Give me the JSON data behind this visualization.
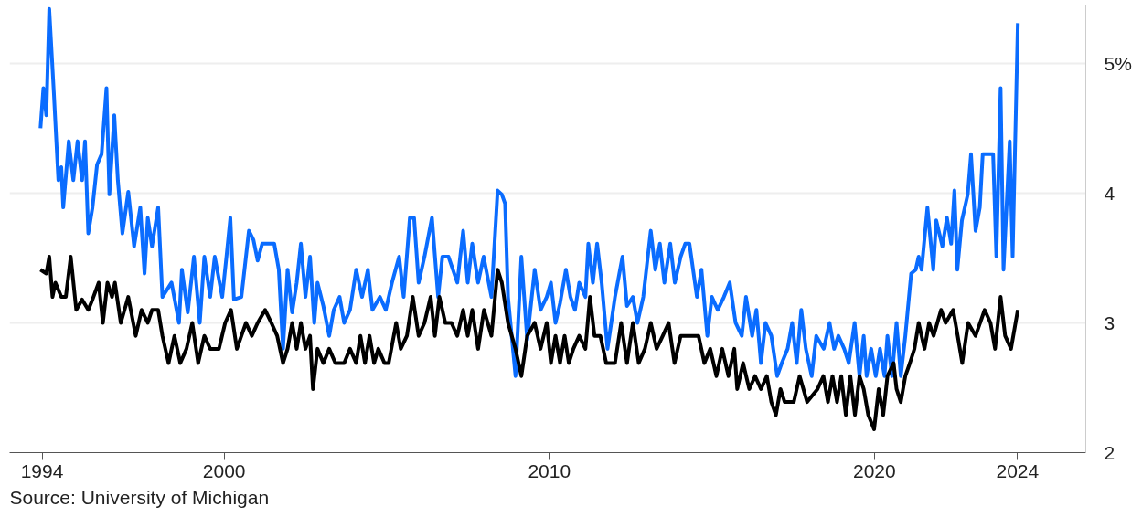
{
  "chart_data": {
    "type": "line",
    "annotations": [
      "Source: University of Michigan"
    ],
    "xlim": [
      1993.4,
      2026.5
    ],
    "xticks": [
      {
        "value": 1994.4,
        "label": "1994"
      },
      2000,
      2010,
      2020,
      {
        "value": 2024.4,
        "label": "2024"
      }
    ],
    "ylim": [
      2,
      5.45
    ],
    "yticks": [
      2,
      3,
      4,
      {
        "value": 5,
        "label": "5%"
      }
    ],
    "grid": "y",
    "marker": "none",
    "line_style": "solid",
    "series": [
      {
        "color": "#0a6cff",
        "x": [
          1994.35,
          1994.44,
          1994.53,
          1994.62,
          1994.76,
          1994.9,
          1994.99,
          1995.05,
          1995.22,
          1995.36,
          1995.49,
          1995.63,
          1995.72,
          1995.82,
          1995.95,
          1996.09,
          1996.23,
          1996.38,
          1996.47,
          1996.62,
          1996.73,
          1996.87,
          1997.05,
          1997.23,
          1997.42,
          1997.55,
          1997.65,
          1997.78,
          1997.97,
          1998.1,
          1998.38,
          1998.61,
          1998.7,
          1998.88,
          1999.07,
          1999.25,
          1999.39,
          1999.57,
          1999.71,
          1999.94,
          2000.07,
          2000.19,
          2000.3,
          2000.53,
          2000.76,
          2000.9,
          2001.03,
          2001.17,
          2001.54,
          2001.68,
          2001.81,
          2001.95,
          2002.09,
          2002.23,
          2002.36,
          2002.5,
          2002.64,
          2002.77,
          2002.87,
          2003.05,
          2003.23,
          2003.37,
          2003.55,
          2003.69,
          2003.87,
          2004.06,
          2004.24,
          2004.42,
          2004.56,
          2004.79,
          2004.97,
          2005.16,
          2005.38,
          2005.52,
          2005.71,
          2005.84,
          2005.98,
          2006.16,
          2006.39,
          2006.58,
          2006.71,
          2006.9,
          2007.17,
          2007.35,
          2007.49,
          2007.63,
          2007.81,
          2007.98,
          2008.22,
          2008.41,
          2008.54,
          2008.64,
          2008.73,
          2008.96,
          2009.14,
          2009.32,
          2009.55,
          2009.73,
          2009.92,
          2010.05,
          2010.19,
          2010.33,
          2010.51,
          2010.65,
          2010.79,
          2010.92,
          2011.11,
          2011.2,
          2011.34,
          2011.47,
          2011.61,
          2011.79,
          2012.02,
          2012.25,
          2012.39,
          2012.57,
          2012.71,
          2012.89,
          2013.12,
          2013.26,
          2013.4,
          2013.54,
          2013.72,
          2013.86,
          2014.04,
          2014.18,
          2014.31,
          2014.54,
          2014.68,
          2014.86,
          2015.0,
          2015.18,
          2015.37,
          2015.55,
          2015.73,
          2015.92,
          2016.05,
          2016.24,
          2016.37,
          2016.51,
          2016.65,
          2016.83,
          2017.01,
          2017.15,
          2017.33,
          2017.47,
          2017.61,
          2017.75,
          2017.89,
          2018.07,
          2018.21,
          2018.44,
          2018.62,
          2018.76,
          2018.89,
          2019.07,
          2019.21,
          2019.39,
          2019.54,
          2019.67,
          2019.76,
          2019.9,
          2020.04,
          2020.17,
          2020.31,
          2020.4,
          2020.54,
          2020.68,
          2020.81,
          2020.95,
          2021.13,
          2021.27,
          2021.36,
          2021.45,
          2021.63,
          2021.81,
          2021.9,
          2022.09,
          2022.23,
          2022.36,
          2022.46,
          2022.55,
          2022.69,
          2022.87,
          2022.97,
          2023.11,
          2023.24,
          2023.33,
          2023.65,
          2023.75,
          2023.88,
          2023.97,
          2024.16,
          2024.25,
          2024.41
        ],
        "values": [
          4.5,
          4.81,
          4.6,
          5.42,
          4.78,
          4.1,
          4.2,
          3.89,
          4.4,
          4.1,
          4.4,
          4.1,
          4.4,
          3.69,
          3.89,
          4.22,
          4.3,
          4.81,
          3.99,
          4.6,
          4.1,
          3.69,
          4.01,
          3.59,
          3.89,
          3.38,
          3.81,
          3.59,
          3.89,
          3.2,
          3.31,
          3.0,
          3.41,
          3.08,
          3.51,
          3.0,
          3.51,
          3.2,
          3.51,
          3.2,
          3.51,
          3.81,
          3.18,
          3.2,
          3.71,
          3.64,
          3.48,
          3.61,
          3.61,
          3.41,
          2.8,
          3.41,
          3.08,
          3.31,
          3.61,
          3.2,
          3.51,
          3.0,
          3.31,
          3.13,
          2.9,
          3.1,
          3.2,
          3.0,
          3.1,
          3.41,
          3.2,
          3.41,
          3.1,
          3.2,
          3.1,
          3.31,
          3.51,
          3.2,
          3.81,
          3.81,
          3.31,
          3.51,
          3.81,
          3.2,
          3.51,
          3.51,
          3.31,
          3.71,
          3.31,
          3.61,
          3.31,
          3.51,
          3.2,
          4.02,
          3.99,
          3.92,
          3.2,
          2.59,
          3.51,
          2.87,
          3.41,
          3.1,
          3.2,
          3.31,
          3.0,
          3.15,
          3.41,
          3.2,
          3.1,
          3.31,
          3.2,
          3.61,
          3.31,
          3.61,
          3.31,
          2.8,
          3.2,
          3.51,
          3.13,
          3.2,
          3.0,
          3.2,
          3.71,
          3.41,
          3.61,
          3.31,
          3.61,
          3.31,
          3.51,
          3.61,
          3.61,
          3.2,
          3.41,
          2.9,
          3.2,
          3.1,
          3.2,
          3.31,
          3.0,
          2.9,
          3.2,
          2.9,
          3.1,
          2.69,
          3.0,
          2.9,
          2.59,
          2.69,
          2.8,
          3.0,
          2.69,
          3.1,
          2.8,
          2.59,
          2.9,
          2.8,
          3.0,
          2.8,
          2.9,
          2.8,
          2.69,
          3.0,
          2.59,
          2.9,
          2.59,
          2.8,
          2.59,
          2.8,
          2.59,
          2.9,
          2.59,
          3.0,
          2.59,
          2.9,
          3.38,
          3.41,
          3.51,
          3.41,
          3.89,
          3.41,
          3.79,
          3.59,
          3.81,
          3.61,
          4.02,
          3.41,
          3.79,
          3.99,
          4.3,
          3.71,
          3.89,
          4.3,
          4.3,
          3.51,
          4.81,
          3.41,
          4.4,
          3.51,
          5.31
        ]
      },
      {
        "color": "#000000",
        "x": [
          1994.35,
          1994.53,
          1994.62,
          1994.72,
          1994.81,
          1994.99,
          1995.13,
          1995.28,
          1995.45,
          1995.63,
          1995.82,
          1995.95,
          1996.14,
          1996.27,
          1996.41,
          1996.55,
          1996.64,
          1996.82,
          1997.05,
          1997.28,
          1997.46,
          1997.65,
          1997.78,
          1997.97,
          1998.1,
          1998.29,
          1998.47,
          1998.65,
          1998.84,
          1999.02,
          1999.2,
          1999.39,
          1999.57,
          1999.84,
          2000.03,
          2000.21,
          2000.39,
          2000.53,
          2000.67,
          2000.85,
          2001.03,
          2001.26,
          2001.45,
          2001.63,
          2001.81,
          2001.95,
          2002.09,
          2002.23,
          2002.36,
          2002.5,
          2002.64,
          2002.73,
          2002.87,
          2003.05,
          2003.23,
          2003.42,
          2003.69,
          2003.87,
          2004.06,
          2004.19,
          2004.33,
          2004.47,
          2004.61,
          2004.74,
          2004.93,
          2005.06,
          2005.29,
          2005.43,
          2005.62,
          2005.8,
          2005.98,
          2006.16,
          2006.35,
          2006.48,
          2006.62,
          2006.8,
          2006.99,
          2007.17,
          2007.35,
          2007.49,
          2007.63,
          2007.81,
          2007.99,
          2008.22,
          2008.41,
          2008.54,
          2008.73,
          2008.96,
          2009.14,
          2009.32,
          2009.55,
          2009.73,
          2009.92,
          2010.05,
          2010.19,
          2010.33,
          2010.47,
          2010.6,
          2010.74,
          2010.92,
          2011.11,
          2011.25,
          2011.39,
          2011.57,
          2011.75,
          2012.02,
          2012.21,
          2012.39,
          2012.57,
          2012.75,
          2012.94,
          2013.12,
          2013.3,
          2013.49,
          2013.67,
          2013.85,
          2014.04,
          2014.31,
          2014.59,
          2014.77,
          2014.95,
          2015.14,
          2015.32,
          2015.51,
          2015.69,
          2015.78,
          2015.96,
          2016.15,
          2016.33,
          2016.51,
          2016.69,
          2016.83,
          2016.97,
          2017.11,
          2017.24,
          2017.52,
          2017.7,
          2017.93,
          2018.25,
          2018.43,
          2018.57,
          2018.71,
          2018.85,
          2018.98,
          2019.12,
          2019.26,
          2019.4,
          2019.54,
          2019.67,
          2019.81,
          2019.99,
          2020.13,
          2020.27,
          2020.4,
          2020.59,
          2020.68,
          2020.81,
          2020.95,
          2021.09,
          2021.23,
          2021.36,
          2021.54,
          2021.68,
          2021.82,
          2022.05,
          2022.19,
          2022.42,
          2022.56,
          2022.7,
          2022.88,
          2023.11,
          2023.39,
          2023.57,
          2023.71,
          2023.88,
          2024.02,
          2024.2,
          2024.41
        ],
        "values": [
          3.41,
          3.38,
          3.51,
          3.2,
          3.31,
          3.2,
          3.2,
          3.51,
          3.1,
          3.18,
          3.1,
          3.18,
          3.31,
          3.0,
          3.31,
          3.2,
          3.31,
          3.0,
          3.2,
          2.9,
          3.1,
          3.0,
          3.1,
          3.1,
          2.9,
          2.69,
          2.9,
          2.69,
          2.8,
          3.0,
          2.69,
          2.9,
          2.8,
          2.8,
          3.0,
          3.1,
          2.8,
          2.9,
          3.0,
          2.9,
          3.0,
          3.1,
          3.0,
          2.9,
          2.69,
          2.8,
          3.0,
          2.8,
          3.0,
          2.8,
          2.9,
          2.49,
          2.8,
          2.69,
          2.8,
          2.69,
          2.69,
          2.8,
          2.69,
          2.9,
          2.69,
          2.9,
          2.69,
          2.8,
          2.69,
          2.69,
          3.0,
          2.8,
          2.9,
          3.2,
          2.9,
          3.0,
          3.2,
          2.9,
          3.2,
          3.0,
          3.0,
          2.9,
          3.1,
          2.9,
          3.1,
          2.8,
          3.1,
          2.9,
          3.41,
          3.31,
          3.0,
          2.8,
          2.59,
          2.9,
          3.0,
          2.8,
          3.0,
          2.69,
          2.9,
          2.69,
          2.9,
          2.69,
          2.8,
          2.9,
          2.8,
          3.2,
          2.9,
          2.9,
          2.69,
          2.69,
          3.0,
          2.69,
          3.0,
          2.69,
          2.8,
          3.0,
          2.8,
          2.9,
          3.0,
          2.69,
          2.9,
          2.9,
          2.9,
          2.69,
          2.8,
          2.59,
          2.8,
          2.59,
          2.8,
          2.49,
          2.69,
          2.49,
          2.59,
          2.49,
          2.59,
          2.39,
          2.29,
          2.49,
          2.39,
          2.39,
          2.59,
          2.39,
          2.49,
          2.59,
          2.39,
          2.59,
          2.39,
          2.59,
          2.29,
          2.59,
          2.29,
          2.59,
          2.49,
          2.29,
          2.18,
          2.49,
          2.29,
          2.59,
          2.69,
          2.49,
          2.39,
          2.59,
          2.69,
          2.8,
          3.0,
          2.8,
          3.0,
          2.9,
          3.1,
          3.0,
          3.1,
          2.9,
          2.69,
          3.0,
          2.9,
          3.1,
          3.0,
          2.8,
          3.2,
          2.9,
          2.8,
          3.1
        ]
      }
    ]
  }
}
